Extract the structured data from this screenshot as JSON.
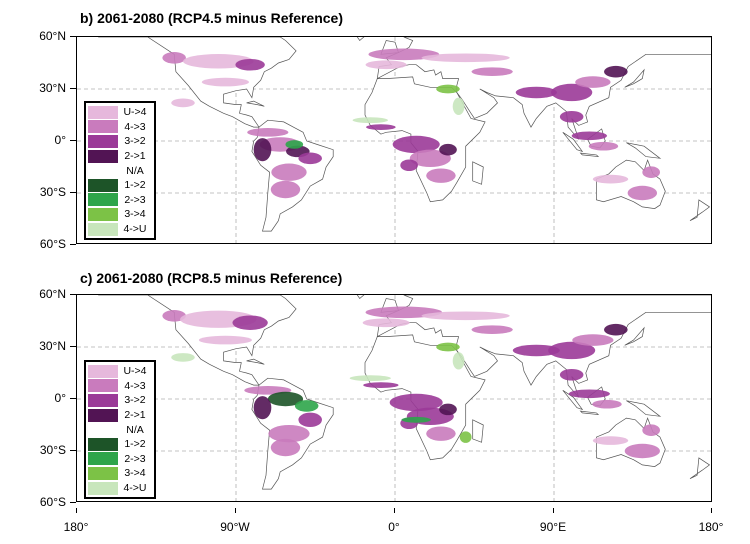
{
  "panels": [
    {
      "title": "b) 2061-2080 (RCP4.5 minus Reference)"
    },
    {
      "title": "c) 2061-2080 (RCP8.5 minus Reference)"
    }
  ],
  "y_axis_labels": [
    "60°N",
    "30°N",
    "0°",
    "30°S",
    "60°S"
  ],
  "x_axis_labels": [
    "180°",
    "90°W",
    "0°",
    "90°E",
    "180°"
  ],
  "legend": [
    {
      "label": "U->4",
      "color": "#e6b8dc"
    },
    {
      "label": "4->3",
      "color": "#c97bbd"
    },
    {
      "label": "3->2",
      "color": "#9b3a98"
    },
    {
      "label": "2->1",
      "color": "#521454"
    },
    {
      "label": "N/A",
      "color": "#ffffff"
    },
    {
      "label": "1->2",
      "color": "#1d5428"
    },
    {
      "label": "2->3",
      "color": "#2ea54a"
    },
    {
      "label": "3->4",
      "color": "#7cc246"
    },
    {
      "label": "4->U",
      "color": "#c8e6bc"
    }
  ]
}
